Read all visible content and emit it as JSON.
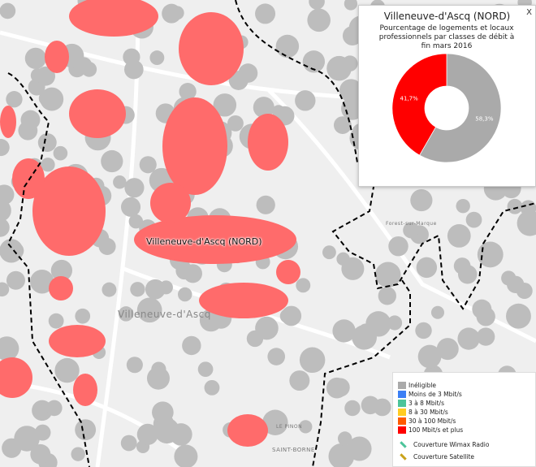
{
  "map": {
    "place_label": "Villeneuve-d'Ascq (NORD)",
    "town_label": "Villeneuve-d'Ascq",
    "secondary_labels": [
      "Forest-sur-Marque",
      "SAINT-BORNE",
      "LE PINON"
    ]
  },
  "popup": {
    "title": "Villeneuve-d'Ascq (NORD)",
    "subtitle": "Pourcentage de logements et locaux professionnels par classes de débit à fin mars 2016",
    "close_label": "X"
  },
  "chart_data": {
    "type": "pie",
    "donut": true,
    "title": "Villeneuve-d'Ascq (NORD)",
    "subtitle": "Pourcentage de logements et locaux professionnels par classes de débit à fin mars 2016",
    "slices": [
      {
        "category": "Inéligible",
        "value": 58.3,
        "label": "58,3%",
        "color": "#aaaaaa"
      },
      {
        "category": "100 Mbit/s et plus",
        "value": 41.7,
        "label": "41,7%",
        "color": "#ff0000"
      }
    ]
  },
  "legend": {
    "items": [
      {
        "label": "Inéligible",
        "color": "#aaaaaa"
      },
      {
        "label": "Moins de 3 Mbit/s",
        "color": "#3b7ff5"
      },
      {
        "label": "3 à 8 Mbit/s",
        "color": "#4cc49a"
      },
      {
        "label": "8 à 30 Mbit/s",
        "color": "#ffcc22"
      },
      {
        "label": "30 à 100 Mbit/s",
        "color": "#ff5a00"
      },
      {
        "label": "100 Mbit/s et plus",
        "color": "#ff0000"
      }
    ],
    "coverage": [
      {
        "label": "Couverture Wimax Radio",
        "color": "#4cc49a"
      },
      {
        "label": "Couverture Satellite",
        "color": "#c9a21a"
      }
    ]
  }
}
